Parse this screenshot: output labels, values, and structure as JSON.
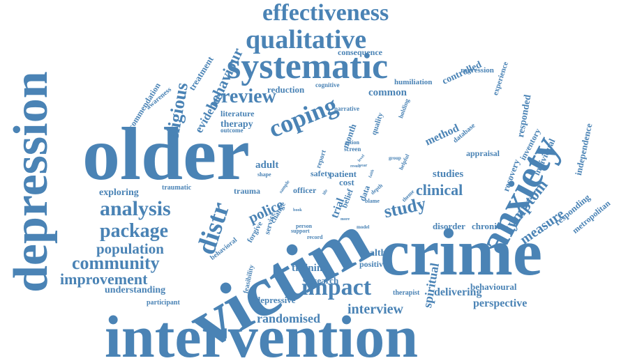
{
  "color": "#4a83b5",
  "words": [
    {
      "text": "intervention"
    },
    {
      "text": "victim"
    },
    {
      "text": "older"
    },
    {
      "text": "crime"
    },
    {
      "text": "depression"
    },
    {
      "text": "systematic"
    },
    {
      "text": "anxiety"
    },
    {
      "text": "qualitative"
    },
    {
      "text": "effectiveness"
    },
    {
      "text": "coping"
    },
    {
      "text": "analysis"
    },
    {
      "text": "package"
    },
    {
      "text": "community"
    },
    {
      "text": "impact"
    },
    {
      "text": "improvement"
    },
    {
      "text": "population"
    },
    {
      "text": "review"
    },
    {
      "text": "religious"
    },
    {
      "text": "distr"
    },
    {
      "text": "police"
    },
    {
      "text": "study"
    },
    {
      "text": "clinical"
    },
    {
      "text": "symptom"
    },
    {
      "text": "measure"
    },
    {
      "text": "interview"
    },
    {
      "text": "randomised"
    },
    {
      "text": "perspective"
    },
    {
      "text": "behaviour"
    },
    {
      "text": "spiritual"
    },
    {
      "text": "delivering"
    },
    {
      "text": "health"
    },
    {
      "text": "positive"
    },
    {
      "text": "studies"
    },
    {
      "text": "method"
    },
    {
      "text": "adult"
    },
    {
      "text": "research"
    },
    {
      "text": "training"
    },
    {
      "text": "depressive"
    },
    {
      "text": "understanding"
    },
    {
      "text": "exploring"
    },
    {
      "text": "evidence"
    },
    {
      "text": "literature"
    },
    {
      "text": "therapy"
    },
    {
      "text": "common"
    },
    {
      "text": "consequence"
    },
    {
      "text": "controlled"
    },
    {
      "text": "reduction"
    },
    {
      "text": "humiliation"
    },
    {
      "text": "regression"
    },
    {
      "text": "recommendation"
    },
    {
      "text": "treatment"
    },
    {
      "text": "awareness"
    },
    {
      "text": "responded"
    },
    {
      "text": "recovery"
    },
    {
      "text": "inventory"
    },
    {
      "text": "individual"
    },
    {
      "text": "independence"
    },
    {
      "text": "responding"
    },
    {
      "text": "metropolitan"
    },
    {
      "text": "experience"
    },
    {
      "text": "appraisal"
    },
    {
      "text": "disorder"
    },
    {
      "text": "chronic"
    },
    {
      "text": "trauma"
    },
    {
      "text": "traumatic"
    },
    {
      "text": "officer"
    },
    {
      "text": "participant"
    },
    {
      "text": "feasibility"
    },
    {
      "text": "behavioral"
    },
    {
      "text": "forgive"
    },
    {
      "text": "behavioural"
    },
    {
      "text": "therapist"
    },
    {
      "text": "safety"
    },
    {
      "text": "patient"
    },
    {
      "text": "cost"
    },
    {
      "text": "data"
    },
    {
      "text": "trial"
    },
    {
      "text": "belief"
    },
    {
      "text": "month"
    },
    {
      "text": "report"
    },
    {
      "text": "quality"
    },
    {
      "text": "holding"
    },
    {
      "text": "cognitive"
    },
    {
      "text": "narrative"
    },
    {
      "text": "outcome"
    },
    {
      "text": "service"
    },
    {
      "text": "change"
    },
    {
      "text": "screen"
    },
    {
      "text": "action"
    },
    {
      "text": "person"
    },
    {
      "text": "support"
    },
    {
      "text": "record"
    },
    {
      "text": "database"
    },
    {
      "text": "group"
    },
    {
      "text": "helpful"
    },
    {
      "text": "theme"
    },
    {
      "text": "model"
    },
    {
      "text": "shape"
    },
    {
      "text": "sample"
    },
    {
      "text": "blame"
    },
    {
      "text": "depth"
    },
    {
      "text": "level"
    },
    {
      "text": "year"
    },
    {
      "text": "result"
    },
    {
      "text": "faith"
    },
    {
      "text": "life"
    },
    {
      "text": "book"
    },
    {
      "text": "more"
    }
  ]
}
